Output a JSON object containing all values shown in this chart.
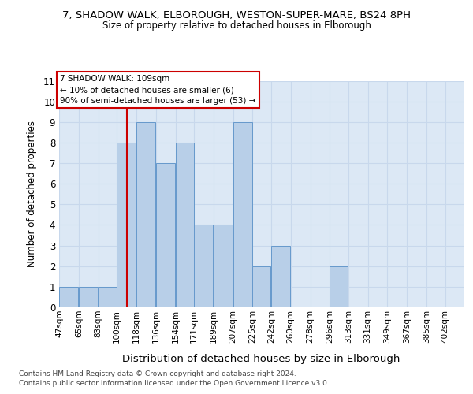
{
  "title": "7, SHADOW WALK, ELBOROUGH, WESTON-SUPER-MARE, BS24 8PH",
  "subtitle": "Size of property relative to detached houses in Elborough",
  "xlabel": "Distribution of detached houses by size in Elborough",
  "ylabel": "Number of detached properties",
  "bar_labels": [
    "47sqm",
    "65sqm",
    "83sqm",
    "100sqm",
    "118sqm",
    "136sqm",
    "154sqm",
    "171sqm",
    "189sqm",
    "207sqm",
    "225sqm",
    "242sqm",
    "260sqm",
    "278sqm",
    "296sqm",
    "313sqm",
    "331sqm",
    "349sqm",
    "367sqm",
    "385sqm",
    "402sqm"
  ],
  "bar_values": [
    1,
    1,
    1,
    8,
    9,
    7,
    8,
    4,
    4,
    9,
    2,
    3,
    0,
    0,
    2,
    0,
    0,
    0,
    0,
    0,
    0
  ],
  "bar_color": "#b8cfe8",
  "bar_edge_color": "#6699cc",
  "ylim": [
    0,
    11
  ],
  "yticks": [
    0,
    1,
    2,
    3,
    4,
    5,
    6,
    7,
    8,
    9,
    10,
    11
  ],
  "red_line_x": 109,
  "bin_edges": [
    47,
    65,
    83,
    100,
    118,
    136,
    154,
    171,
    189,
    207,
    225,
    242,
    260,
    278,
    296,
    313,
    331,
    349,
    367,
    385,
    402
  ],
  "annotation_text": "7 SHADOW WALK: 109sqm\n← 10% of detached houses are smaller (6)\n90% of semi-detached houses are larger (53) →",
  "annotation_box_edge_color": "#cc0000",
  "footer1": "Contains HM Land Registry data © Crown copyright and database right 2024.",
  "footer2": "Contains public sector information licensed under the Open Government Licence v3.0.",
  "grid_color": "#c8d8ec",
  "background_color": "#dce8f5"
}
